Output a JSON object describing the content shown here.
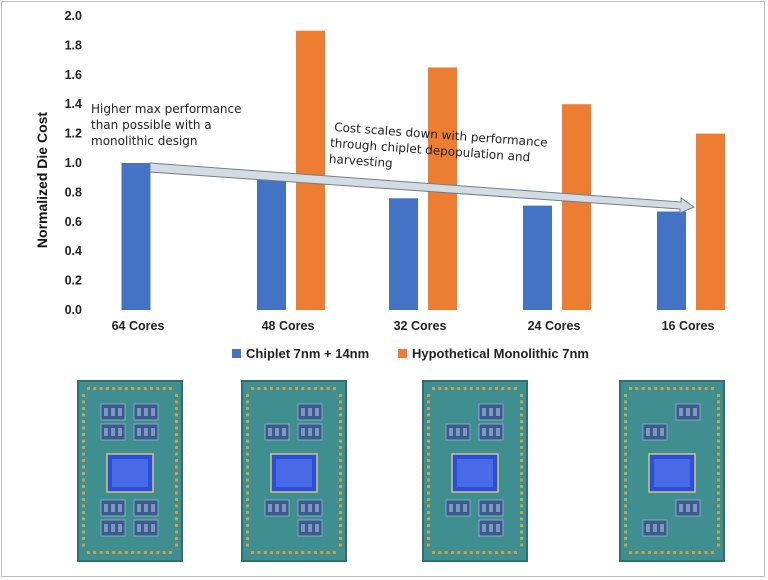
{
  "chart_data": {
    "type": "bar",
    "ylabel": "Normalized Die Cost",
    "ylim": [
      0,
      2.0
    ],
    "yticks": [
      "0.0",
      "0.2",
      "0.4",
      "0.6",
      "0.8",
      "1.0",
      "1.2",
      "1.4",
      "1.6",
      "1.8",
      "2.0"
    ],
    "categories": [
      "64 Cores",
      "48 Cores",
      "32 Cores",
      "24 Cores",
      "16 Cores"
    ],
    "series": [
      {
        "name": "Chiplet 7nm + 14nm",
        "color": "#4472c4",
        "values": [
          1.0,
          0.9,
          0.76,
          0.71,
          0.67
        ]
      },
      {
        "name": "Hypothetical Monolithic 7nm",
        "color": "#ed7d31",
        "values": [
          null,
          1.9,
          1.65,
          1.4,
          1.2
        ]
      }
    ],
    "annotations": {
      "left": [
        "Higher max performance",
        "than possible with a",
        "monolithic design"
      ],
      "trend": [
        "Cost scales down with performance",
        "through chiplet depopulation and",
        "harvesting"
      ]
    }
  },
  "chips": [
    {
      "name": "64 Cores package",
      "ccds": 8
    },
    {
      "name": "48 Cores package",
      "ccds": 6
    },
    {
      "name": "32 Cores package",
      "ccds": 6
    },
    {
      "name": "16 Cores package",
      "ccds": 4
    }
  ]
}
